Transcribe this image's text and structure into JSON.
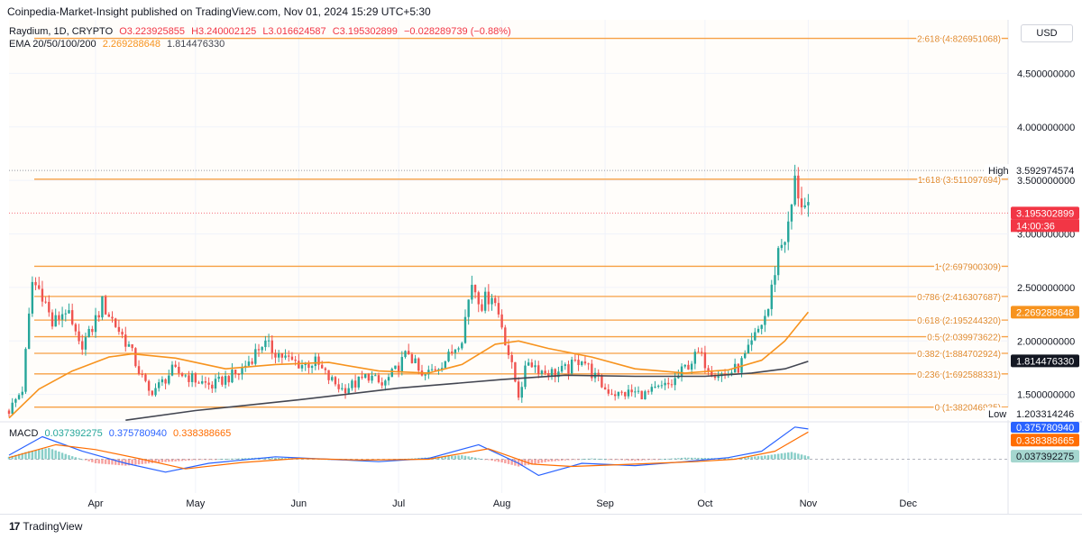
{
  "header": {
    "published": "Coinpedia-Market-Insight published on TradingView.com, Nov 01, 2024 15:29 UTC+5:30"
  },
  "legend": {
    "symbol": "Raydium, 1D, CRYPTO",
    "o": "O3.223925855",
    "h": "H3.240002125",
    "l": "L3.016624587",
    "c": "C3.195302899",
    "chg": "−0.028289739 (−0.88%)",
    "ema_label": "EMA 20/50/100/200",
    "ema_a": "2.269288648",
    "ema_b": "1.814476330",
    "macd_label": "MACD",
    "macd_hist": "0.037392275",
    "macd_line": "0.375780940",
    "macd_signal": "0.338388665"
  },
  "toolbar": {
    "currency": "USD"
  },
  "footer": {
    "logo_text": "TradingView",
    "logo_mark": "17"
  },
  "colors": {
    "up": "#26a69a",
    "down": "#ef5350",
    "fib": "#f7a044",
    "ema_fast": "#f7931e",
    "ema_slow": "#434651",
    "macd_line": "#2962ff",
    "macd_signal": "#ff6d00",
    "price_badge": "#f23645"
  },
  "badges": {
    "high_label": "High",
    "high_value": "3.592974574",
    "low_label": "Low",
    "low_value": "1.203314246",
    "last_price": "3.195302899",
    "countdown": "14:00:36",
    "ema_fast": "2.269288648",
    "ema_slow": "1.814476330",
    "macd_line": "0.375780940",
    "macd_signal": "0.338388665",
    "macd_hist": "0.037392275"
  },
  "chart_data": {
    "type": "candlestick",
    "y_scale": "linear",
    "ylim": [
      1.27,
      5.0
    ],
    "y_ticks": [
      {
        "value": 4.5,
        "label": "4.500000000"
      },
      {
        "value": 4.0,
        "label": "4.000000000"
      },
      {
        "value": 3.5,
        "label": "3.500000000"
      },
      {
        "value": 3.0,
        "label": "3.000000000"
      },
      {
        "value": 2.5,
        "label": "2.500000000"
      },
      {
        "value": 2.0,
        "label": "2.000000000"
      },
      {
        "value": 1.5,
        "label": "1.500000000"
      }
    ],
    "x_range": [
      "2024-03-06",
      "2024-12-31"
    ],
    "x_ticks": [
      {
        "date": "2024-04-01",
        "label": "Apr"
      },
      {
        "date": "2024-05-01",
        "label": "May"
      },
      {
        "date": "2024-06-01",
        "label": "Jun"
      },
      {
        "date": "2024-07-01",
        "label": "Jul"
      },
      {
        "date": "2024-08-01",
        "label": "Aug"
      },
      {
        "date": "2024-09-01",
        "label": "Sep"
      },
      {
        "date": "2024-10-01",
        "label": "Oct"
      },
      {
        "date": "2024-11-01",
        "label": "Nov"
      },
      {
        "date": "2024-12-01",
        "label": "Dec"
      }
    ],
    "fib_levels": [
      {
        "ratio": "2.618",
        "value": 4.826951068,
        "label": "2.618 (4.826951068)"
      },
      {
        "ratio": "1.618",
        "value": 3.511097694,
        "label": "1.618 (3.511097694)"
      },
      {
        "ratio": "1",
        "value": 2.697900309,
        "label": "1 (2.697900309)"
      },
      {
        "ratio": "0.786",
        "value": 2.416307687,
        "label": "0.786 (2.416307687)"
      },
      {
        "ratio": "0.618",
        "value": 2.19524432,
        "label": "0.618 (2.195244320)"
      },
      {
        "ratio": "0.5",
        "value": 2.039973622,
        "label": "0.5 (2.039973622)"
      },
      {
        "ratio": "0.382",
        "value": 1.884702924,
        "label": "0.382 (1.884702924)"
      },
      {
        "ratio": "0.236",
        "value": 1.692588331,
        "label": "0.236 (1.692588331)"
      },
      {
        "ratio": "0",
        "value": 1.382046935,
        "label": "0 (1.382046935)"
      }
    ],
    "high": 3.592974574,
    "low": 1.203314246,
    "last": 3.195302899,
    "price_path": [
      [
        "2024-03-06",
        1.35
      ],
      [
        "2024-03-10",
        1.55
      ],
      [
        "2024-03-13",
        2.55
      ],
      [
        "2024-03-16",
        2.45
      ],
      [
        "2024-03-19",
        2.15
      ],
      [
        "2024-03-23",
        2.3
      ],
      [
        "2024-03-27",
        1.95
      ],
      [
        "2024-03-30",
        2.05
      ],
      [
        "2024-04-03",
        2.35
      ],
      [
        "2024-04-07",
        2.15
      ],
      [
        "2024-04-11",
        1.95
      ],
      [
        "2024-04-14",
        1.72
      ],
      [
        "2024-04-17",
        1.52
      ],
      [
        "2024-04-20",
        1.58
      ],
      [
        "2024-04-24",
        1.72
      ],
      [
        "2024-04-28",
        1.68
      ],
      [
        "2024-05-02",
        1.62
      ],
      [
        "2024-05-06",
        1.58
      ],
      [
        "2024-05-10",
        1.65
      ],
      [
        "2024-05-14",
        1.7
      ],
      [
        "2024-05-18",
        1.85
      ],
      [
        "2024-05-21",
        1.98
      ],
      [
        "2024-05-25",
        1.9
      ],
      [
        "2024-05-29",
        1.82
      ],
      [
        "2024-06-02",
        1.78
      ],
      [
        "2024-06-06",
        1.8
      ],
      [
        "2024-06-10",
        1.65
      ],
      [
        "2024-06-14",
        1.55
      ],
      [
        "2024-06-18",
        1.6
      ],
      [
        "2024-06-22",
        1.68
      ],
      [
        "2024-06-26",
        1.58
      ],
      [
        "2024-06-30",
        1.72
      ],
      [
        "2024-07-04",
        1.9
      ],
      [
        "2024-07-08",
        1.65
      ],
      [
        "2024-07-12",
        1.75
      ],
      [
        "2024-07-16",
        1.85
      ],
      [
        "2024-07-20",
        2.05
      ],
      [
        "2024-07-23",
        2.55
      ],
      [
        "2024-07-26",
        2.35
      ],
      [
        "2024-07-29",
        2.45
      ],
      [
        "2024-08-01",
        2.15
      ],
      [
        "2024-08-04",
        1.75
      ],
      [
        "2024-08-06",
        1.5
      ],
      [
        "2024-08-09",
        1.82
      ],
      [
        "2024-08-13",
        1.72
      ],
      [
        "2024-08-17",
        1.7
      ],
      [
        "2024-08-21",
        1.74
      ],
      [
        "2024-08-25",
        1.85
      ],
      [
        "2024-08-28",
        1.7
      ],
      [
        "2024-09-01",
        1.55
      ],
      [
        "2024-09-05",
        1.5
      ],
      [
        "2024-09-09",
        1.52
      ],
      [
        "2024-09-13",
        1.5
      ],
      [
        "2024-09-17",
        1.55
      ],
      [
        "2024-09-21",
        1.6
      ],
      [
        "2024-09-25",
        1.75
      ],
      [
        "2024-09-29",
        1.88
      ],
      [
        "2024-10-03",
        1.72
      ],
      [
        "2024-10-07",
        1.68
      ],
      [
        "2024-10-11",
        1.75
      ],
      [
        "2024-10-14",
        1.9
      ],
      [
        "2024-10-17",
        2.1
      ],
      [
        "2024-10-20",
        2.3
      ],
      [
        "2024-10-23",
        2.85
      ],
      [
        "2024-10-26",
        3.05
      ],
      [
        "2024-10-28",
        3.48
      ],
      [
        "2024-10-30",
        3.3
      ],
      [
        "2024-11-01",
        3.195
      ]
    ],
    "ema_fast_path": [
      [
        "2024-03-06",
        1.28
      ],
      [
        "2024-03-15",
        1.55
      ],
      [
        "2024-03-25",
        1.72
      ],
      [
        "2024-04-05",
        1.85
      ],
      [
        "2024-04-12",
        1.88
      ],
      [
        "2024-04-25",
        1.84
      ],
      [
        "2024-05-10",
        1.74
      ],
      [
        "2024-05-25",
        1.78
      ],
      [
        "2024-06-10",
        1.8
      ],
      [
        "2024-06-25",
        1.72
      ],
      [
        "2024-07-10",
        1.7
      ],
      [
        "2024-07-20",
        1.78
      ],
      [
        "2024-07-30",
        1.97
      ],
      [
        "2024-08-06",
        2.0
      ],
      [
        "2024-08-15",
        1.93
      ],
      [
        "2024-08-28",
        1.85
      ],
      [
        "2024-09-10",
        1.74
      ],
      [
        "2024-09-25",
        1.7
      ],
      [
        "2024-10-08",
        1.73
      ],
      [
        "2024-10-18",
        1.82
      ],
      [
        "2024-10-25",
        2.0
      ],
      [
        "2024-11-01",
        2.27
      ]
    ],
    "ema_slow_path": [
      [
        "2024-04-10",
        1.26
      ],
      [
        "2024-05-01",
        1.35
      ],
      [
        "2024-06-01",
        1.45
      ],
      [
        "2024-07-01",
        1.56
      ],
      [
        "2024-08-01",
        1.64
      ],
      [
        "2024-08-20",
        1.68
      ],
      [
        "2024-09-10",
        1.67
      ],
      [
        "2024-10-01",
        1.67
      ],
      [
        "2024-10-15",
        1.7
      ],
      [
        "2024-10-25",
        1.74
      ],
      [
        "2024-11-01",
        1.81
      ]
    ],
    "macd_ylim": [
      -0.42,
      0.42
    ],
    "macd_hist_path": [
      [
        "2024-03-06",
        0.03
      ],
      [
        "2024-03-12",
        0.1
      ],
      [
        "2024-03-18",
        0.14
      ],
      [
        "2024-03-24",
        0.05
      ],
      [
        "2024-04-01",
        -0.05
      ],
      [
        "2024-04-10",
        -0.08
      ],
      [
        "2024-04-20",
        -0.04
      ],
      [
        "2024-05-01",
        -0.01
      ],
      [
        "2024-05-20",
        0.02
      ],
      [
        "2024-06-05",
        0.01
      ],
      [
        "2024-06-20",
        -0.02
      ],
      [
        "2024-07-05",
        0.01
      ],
      [
        "2024-07-20",
        0.05
      ],
      [
        "2024-08-01",
        -0.04
      ],
      [
        "2024-08-06",
        -0.09
      ],
      [
        "2024-08-15",
        -0.03
      ],
      [
        "2024-08-28",
        0.01
      ],
      [
        "2024-09-10",
        -0.02
      ],
      [
        "2024-09-25",
        0.02
      ],
      [
        "2024-10-10",
        0.01
      ],
      [
        "2024-10-20",
        0.05
      ],
      [
        "2024-10-27",
        0.09
      ],
      [
        "2024-11-01",
        0.037
      ]
    ],
    "macd_line_path": [
      [
        "2024-03-06",
        0.05
      ],
      [
        "2024-03-16",
        0.28
      ],
      [
        "2024-03-28",
        0.1
      ],
      [
        "2024-04-10",
        -0.05
      ],
      [
        "2024-04-22",
        -0.16
      ],
      [
        "2024-05-05",
        -0.05
      ],
      [
        "2024-05-25",
        0.03
      ],
      [
        "2024-06-10",
        0.0
      ],
      [
        "2024-06-25",
        -0.03
      ],
      [
        "2024-07-10",
        0.01
      ],
      [
        "2024-07-25",
        0.18
      ],
      [
        "2024-08-06",
        -0.05
      ],
      [
        "2024-08-12",
        -0.2
      ],
      [
        "2024-08-25",
        -0.05
      ],
      [
        "2024-09-10",
        -0.08
      ],
      [
        "2024-09-25",
        -0.03
      ],
      [
        "2024-10-08",
        0.02
      ],
      [
        "2024-10-18",
        0.1
      ],
      [
        "2024-10-28",
        0.4
      ],
      [
        "2024-11-01",
        0.376
      ]
    ],
    "macd_signal_path": [
      [
        "2024-03-06",
        0.02
      ],
      [
        "2024-03-20",
        0.18
      ],
      [
        "2024-04-01",
        0.12
      ],
      [
        "2024-04-15",
        0.0
      ],
      [
        "2024-04-28",
        -0.12
      ],
      [
        "2024-05-15",
        -0.04
      ],
      [
        "2024-06-01",
        0.01
      ],
      [
        "2024-06-20",
        -0.01
      ],
      [
        "2024-07-10",
        0.0
      ],
      [
        "2024-07-28",
        0.13
      ],
      [
        "2024-08-10",
        -0.06
      ],
      [
        "2024-08-22",
        -0.09
      ],
      [
        "2024-09-10",
        -0.06
      ],
      [
        "2024-09-28",
        -0.03
      ],
      [
        "2024-10-10",
        0.0
      ],
      [
        "2024-10-22",
        0.1
      ],
      [
        "2024-11-01",
        0.338
      ]
    ]
  }
}
